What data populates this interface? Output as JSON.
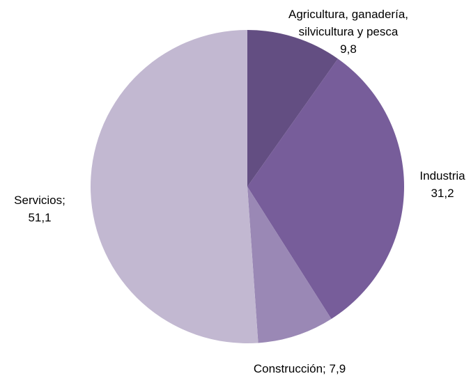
{
  "chart_data": {
    "type": "pie",
    "categories": [
      "Agricultura, ganadería, silvicultura y pesca",
      "Industria",
      "Construcción;",
      "Servicios;"
    ],
    "values": [
      9.8,
      31.2,
      7.9,
      51.1
    ],
    "value_labels": [
      "9,8",
      "31,2",
      "7,9",
      "51,1"
    ],
    "colors": [
      "#634e82",
      "#775d9a",
      "#9a88b5",
      "#c2b8d1"
    ]
  }
}
